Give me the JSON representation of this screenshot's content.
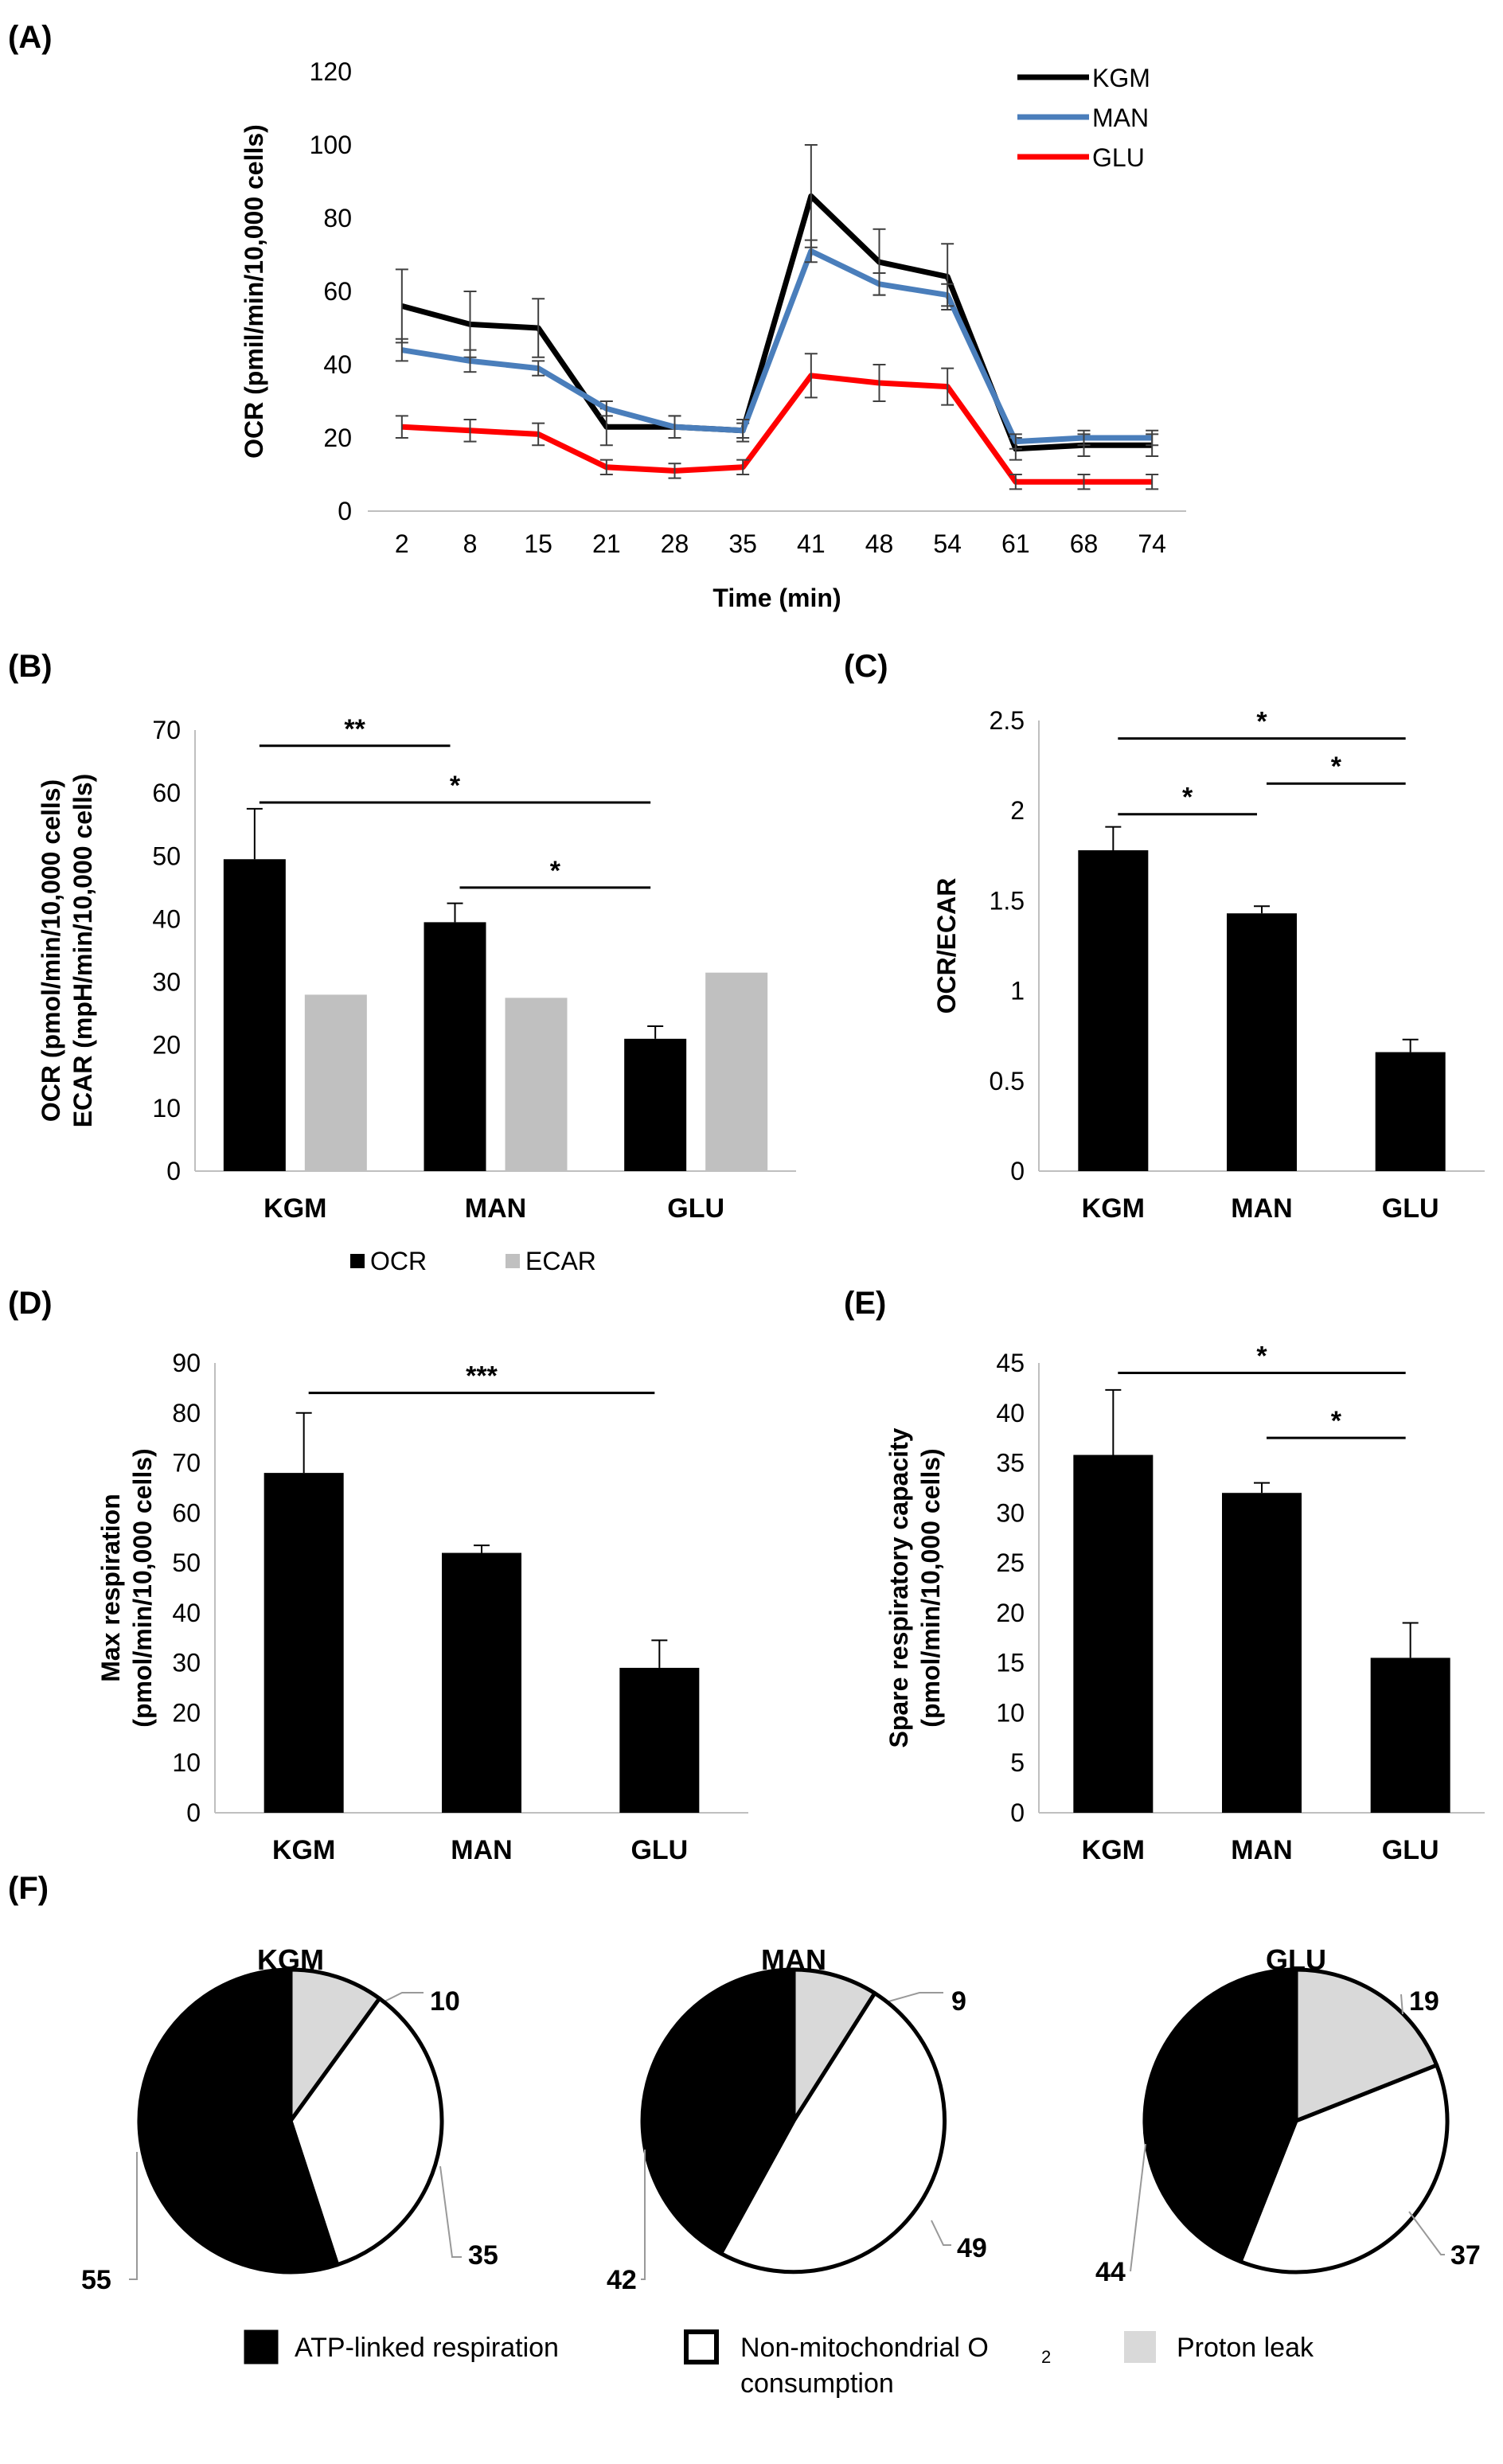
{
  "figure": {
    "panel_labels": [
      "(A)",
      "(B)",
      "(C)",
      "(D)",
      "(E)",
      "(F)"
    ]
  },
  "chart_data": [
    {
      "id": "A",
      "type": "line",
      "title": "",
      "xlabel": "Time (min)",
      "ylabel": "OCR (pmil/min/10,000 cells)",
      "ylim": [
        0,
        120
      ],
      "yticks": [
        0,
        20,
        40,
        60,
        80,
        100,
        120
      ],
      "categories": [
        "2",
        "8",
        "15",
        "21",
        "28",
        "35",
        "41",
        "48",
        "54",
        "61",
        "68",
        "74"
      ],
      "legend": "top-right",
      "series": [
        {
          "name": "KGM",
          "color": "#000000",
          "values": [
            56,
            51,
            50,
            23,
            23,
            22,
            86,
            68,
            64,
            17,
            18,
            18
          ],
          "errors": [
            10,
            9,
            8,
            5,
            3,
            2,
            14,
            9,
            9,
            3,
            3,
            3
          ]
        },
        {
          "name": "MAN",
          "color": "#4a7ebb",
          "values": [
            44,
            41,
            39,
            28,
            23,
            22,
            71,
            62,
            59,
            19,
            20,
            20
          ],
          "errors": [
            3,
            3,
            2,
            2,
            3,
            3,
            3,
            3,
            3,
            2,
            2,
            2
          ]
        },
        {
          "name": "GLU",
          "color": "#ff0000",
          "values": [
            23,
            22,
            21,
            12,
            11,
            12,
            37,
            35,
            34,
            8,
            8,
            8
          ],
          "errors": [
            3,
            3,
            3,
            2,
            2,
            2,
            6,
            5,
            5,
            2,
            2,
            2
          ]
        }
      ]
    },
    {
      "id": "B",
      "type": "bar",
      "title": "",
      "xlabel": "",
      "ylabel_lines": [
        "OCR (pmol/min/10,000 cells)",
        "ECAR (mpH/min/10,000 cells)"
      ],
      "ylim": [
        0,
        70
      ],
      "yticks": [
        0,
        10,
        20,
        30,
        40,
        50,
        60,
        70
      ],
      "categories": [
        "KGM",
        "MAN",
        "GLU"
      ],
      "legend": "bottom",
      "series": [
        {
          "name": "OCR",
          "color": "#000000",
          "values": [
            49.5,
            39.5,
            21
          ],
          "errors": [
            8,
            3,
            2
          ]
        },
        {
          "name": "ECAR",
          "color": "#c0c0c0",
          "values": [
            28,
            27.5,
            31.5
          ],
          "errors": [
            0,
            0,
            0
          ]
        }
      ],
      "significance": [
        {
          "label": "**",
          "from": 0,
          "to": 1,
          "y": 67.5
        },
        {
          "label": "*",
          "from": 0,
          "to": 2,
          "y": 58.5
        },
        {
          "label": "*",
          "from": 1,
          "to": 2,
          "y": 45
        }
      ]
    },
    {
      "id": "C",
      "type": "bar",
      "title": "",
      "xlabel": "",
      "ylabel": "OCR/ECAR",
      "ylim": [
        0,
        2.5
      ],
      "yticks": [
        0,
        0.5,
        1,
        1.5,
        2,
        2.5
      ],
      "ytick_labels": [
        "0",
        "0.5",
        "1",
        "1.5",
        "2",
        "2.5"
      ],
      "categories": [
        "KGM",
        "MAN",
        "GLU"
      ],
      "series": [
        {
          "name": "OCR/ECAR",
          "color": "#000000",
          "values": [
            1.78,
            1.43,
            0.66
          ],
          "errors": [
            0.13,
            0.04,
            0.07
          ]
        }
      ],
      "significance": [
        {
          "label": "*",
          "from": 0,
          "to": 2,
          "y": 2.4
        },
        {
          "label": "*",
          "from": 0,
          "to": 1,
          "y": 1.98
        },
        {
          "label": "*",
          "from": 1,
          "to": 2,
          "y": 2.15
        }
      ]
    },
    {
      "id": "D",
      "type": "bar",
      "title": "",
      "xlabel": "",
      "ylabel_lines": [
        "Max respiration",
        "(pmol/min/10,000 cells)"
      ],
      "ylim": [
        0,
        90
      ],
      "yticks": [
        0,
        10,
        20,
        30,
        40,
        50,
        60,
        70,
        80,
        90
      ],
      "categories": [
        "KGM",
        "MAN",
        "GLU"
      ],
      "series": [
        {
          "name": "Max respiration",
          "color": "#000000",
          "values": [
            68,
            52,
            29
          ],
          "errors": [
            12,
            1.5,
            5.5
          ]
        }
      ],
      "significance": [
        {
          "label": "***",
          "from": 0,
          "to": 2,
          "y": 84
        }
      ]
    },
    {
      "id": "E",
      "type": "bar",
      "title": "",
      "xlabel": "",
      "ylabel_lines": [
        "Spare respiratory capacity",
        "(pmol/min/10,000 cells)"
      ],
      "ylim": [
        0,
        45
      ],
      "yticks": [
        0,
        5,
        10,
        15,
        20,
        25,
        30,
        35,
        40,
        45
      ],
      "categories": [
        "KGM",
        "MAN",
        "GLU"
      ],
      "series": [
        {
          "name": "Spare respiratory capacity",
          "color": "#000000",
          "values": [
            35.8,
            32,
            15.5
          ],
          "errors": [
            6.5,
            1,
            3.5
          ]
        }
      ],
      "significance": [
        {
          "label": "*",
          "from": 0,
          "to": 2,
          "y": 44
        },
        {
          "label": "*",
          "from": 1,
          "to": 2,
          "y": 37.5
        }
      ]
    },
    {
      "id": "F",
      "type": "pie",
      "legend": "bottom",
      "categories": [
        "Proton leak",
        "Non-mitochondrial O2 consumption",
        "ATP-linked respiration"
      ],
      "colors": [
        "#d9d9d9",
        "#ffffff",
        "#000000"
      ],
      "pies": [
        {
          "title": "KGM",
          "values": [
            10,
            35,
            55
          ]
        },
        {
          "title": "MAN",
          "values": [
            9,
            49,
            42
          ]
        },
        {
          "title": "GLU",
          "values": [
            19,
            37,
            44
          ]
        }
      ],
      "legend_labels": {
        "atp": "ATP-linked respiration",
        "nonmito_line1": "Non-mitochondrial O",
        "nonmito_sub": "2",
        "nonmito_line2": "consumption",
        "proton": "Proton leak"
      }
    }
  ]
}
